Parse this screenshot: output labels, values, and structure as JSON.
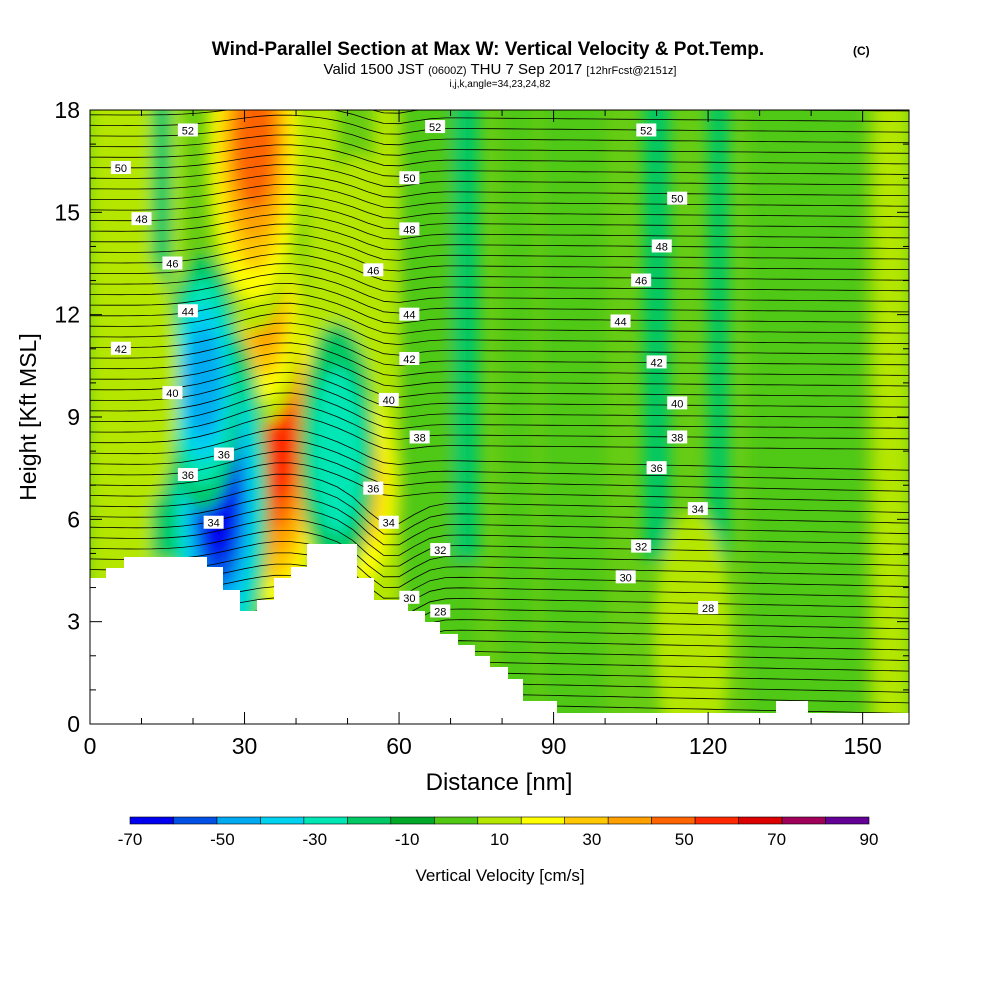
{
  "header": {
    "title": "Wind-Parallel Section at Max W: Vertical Velocity & Pot.Temp.",
    "title_suffix": "(C)",
    "valid_prefix": "Valid 1500 JST",
    "valid_zulu": "(0600Z)",
    "valid_main": "THU 7 Sep 2017",
    "valid_forecast": "[12hrFcst@2151z]",
    "params": "i,j,k,angle=34,23,24,82"
  },
  "chart_data": {
    "type": "heatmap",
    "xlabel": "Distance [nm]",
    "ylabel": "Height [Kft MSL]",
    "xlim": [
      0,
      159
    ],
    "ylim": [
      0,
      18
    ],
    "x_ticks": [
      0,
      30,
      60,
      90,
      120,
      150
    ],
    "y_ticks": [
      0,
      3,
      6,
      9,
      12,
      15,
      18
    ],
    "colorbar": {
      "label": "Vertical Velocity [cm/s]",
      "tick_labels": [
        "-70",
        "-50",
        "-30",
        "-10",
        "10",
        "30",
        "50",
        "70",
        "90"
      ],
      "bounds": [
        -70,
        -60,
        -50,
        -40,
        -30,
        -20,
        -10,
        0,
        10,
        20,
        30,
        40,
        50,
        60,
        70,
        80,
        90
      ],
      "colors": [
        "#0000f0",
        "#0050e6",
        "#00aaf0",
        "#00d2f0",
        "#00e6b4",
        "#00c864",
        "#00aa28",
        "#50c814",
        "#b4e600",
        "#ffff00",
        "#ffc800",
        "#ffa000",
        "#ff6400",
        "#ff2800",
        "#dc0000",
        "#a0005a",
        "#640096"
      ]
    },
    "velocity_features": [
      {
        "x": 36,
        "y": 8.2,
        "value": 68
      },
      {
        "x": 34,
        "y": 12.5,
        "value": 45
      },
      {
        "x": 32,
        "y": 17.0,
        "value": 55
      },
      {
        "x": 25,
        "y": 6.5,
        "value": -65
      },
      {
        "x": 22,
        "y": 10.0,
        "value": -45
      },
      {
        "x": 53,
        "y": 7.0,
        "value": 35
      },
      {
        "x": 52,
        "y": 13.0,
        "value": 22
      },
      {
        "x": 48,
        "y": 8.0,
        "value": -28
      },
      {
        "x": 117,
        "y": 2.5,
        "value": 18
      },
      {
        "x": 10,
        "y": 10.0,
        "value": 16
      }
    ],
    "isentrope_labels": [
      {
        "x": 19,
        "y": 17.4,
        "value": "52"
      },
      {
        "x": 67,
        "y": 17.5,
        "value": "52"
      },
      {
        "x": 108,
        "y": 17.4,
        "value": "52"
      },
      {
        "x": 6,
        "y": 16.3,
        "value": "50"
      },
      {
        "x": 62,
        "y": 16.0,
        "value": "50"
      },
      {
        "x": 114,
        "y": 15.4,
        "value": "50"
      },
      {
        "x": 10,
        "y": 14.8,
        "value": "48"
      },
      {
        "x": 62,
        "y": 14.5,
        "value": "48"
      },
      {
        "x": 111,
        "y": 14.0,
        "value": "48"
      },
      {
        "x": 16,
        "y": 13.5,
        "value": "46"
      },
      {
        "x": 55,
        "y": 13.3,
        "value": "46"
      },
      {
        "x": 107,
        "y": 13.0,
        "value": "46"
      },
      {
        "x": 19,
        "y": 12.1,
        "value": "44"
      },
      {
        "x": 62,
        "y": 12.0,
        "value": "44"
      },
      {
        "x": 103,
        "y": 11.8,
        "value": "44"
      },
      {
        "x": 6,
        "y": 11.0,
        "value": "42"
      },
      {
        "x": 62,
        "y": 10.7,
        "value": "42"
      },
      {
        "x": 110,
        "y": 10.6,
        "value": "42"
      },
      {
        "x": 16,
        "y": 9.7,
        "value": "40"
      },
      {
        "x": 58,
        "y": 9.5,
        "value": "40"
      },
      {
        "x": 114,
        "y": 9.4,
        "value": "40"
      },
      {
        "x": 26,
        "y": 7.9,
        "value": "36"
      },
      {
        "x": 64,
        "y": 8.4,
        "value": "38"
      },
      {
        "x": 114,
        "y": 8.4,
        "value": "38"
      },
      {
        "x": 19,
        "y": 7.3,
        "value": "36"
      },
      {
        "x": 55,
        "y": 6.9,
        "value": "36"
      },
      {
        "x": 110,
        "y": 7.5,
        "value": "36"
      },
      {
        "x": 24,
        "y": 5.9,
        "value": "34"
      },
      {
        "x": 58,
        "y": 5.9,
        "value": "34"
      },
      {
        "x": 118,
        "y": 6.3,
        "value": "34"
      },
      {
        "x": 68,
        "y": 5.1,
        "value": "32"
      },
      {
        "x": 107,
        "y": 5.2,
        "value": "32"
      },
      {
        "x": 62,
        "y": 3.7,
        "value": "30"
      },
      {
        "x": 104,
        "y": 4.3,
        "value": "30"
      },
      {
        "x": 68,
        "y": 3.3,
        "value": "28"
      },
      {
        "x": 120,
        "y": 3.4,
        "value": "28"
      }
    ]
  }
}
